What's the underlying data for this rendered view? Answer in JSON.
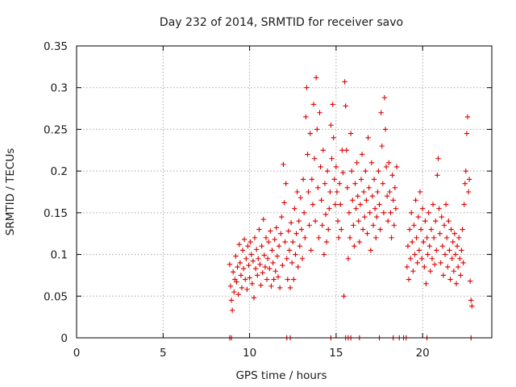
{
  "chart_data": {
    "type": "scatter",
    "title": "Day 232 of 2014, SRMTID for receiver savo",
    "xlabel": "GPS time / hours",
    "ylabel": "SRMTID / TECUs",
    "xlim": [
      0,
      24
    ],
    "ylim": [
      0,
      0.35
    ],
    "x_ticks": [
      0,
      5,
      10,
      15,
      20
    ],
    "x_tick_labels": [
      "0",
      "5",
      "10",
      "15",
      "20"
    ],
    "y_ticks": [
      0,
      0.05,
      0.1,
      0.15,
      0.2,
      0.25,
      0.3,
      0.35
    ],
    "y_tick_labels": [
      "0",
      "0.05",
      "0.1",
      "0.15",
      "0.2",
      "0.25",
      "0.3",
      "0.35"
    ],
    "grid": true,
    "marker": "+",
    "series_color": "#dd0000",
    "series": [
      {
        "name": "SRMTID",
        "points": [
          [
            8.85,
            0.088
          ],
          [
            8.9,
            0.062
          ],
          [
            8.95,
            0.045
          ],
          [
            9.0,
            0.033
          ],
          [
            9.05,
            0.079
          ],
          [
            9.1,
            0.055
          ],
          [
            9.15,
            0.07
          ],
          [
            9.2,
            0.098
          ],
          [
            9.25,
            0.067
          ],
          [
            9.3,
            0.085
          ],
          [
            9.35,
            0.052
          ],
          [
            9.4,
            0.112
          ],
          [
            9.45,
            0.09
          ],
          [
            9.5,
            0.075
          ],
          [
            9.55,
            0.06
          ],
          [
            9.6,
            0.105
          ],
          [
            9.65,
            0.083
          ],
          [
            9.7,
            0.118
          ],
          [
            9.75,
            0.07
          ],
          [
            9.8,
            0.095
          ],
          [
            9.85,
            0.058
          ],
          [
            9.9,
            0.11
          ],
          [
            9.95,
            0.087
          ],
          [
            10.0,
            0.072
          ],
          [
            10.05,
            0.115
          ],
          [
            10.1,
            0.1
          ],
          [
            10.15,
            0.065
          ],
          [
            10.2,
            0.092
          ],
          [
            10.25,
            0.048
          ],
          [
            10.3,
            0.12
          ],
          [
            10.35,
            0.083
          ],
          [
            10.4,
            0.106
          ],
          [
            10.45,
            0.075
          ],
          [
            10.5,
            0.095
          ],
          [
            10.55,
            0.13
          ],
          [
            10.6,
            0.088
          ],
          [
            10.65,
            0.063
          ],
          [
            10.7,
            0.11
          ],
          [
            10.75,
            0.078
          ],
          [
            10.8,
            0.142
          ],
          [
            10.85,
            0.099
          ],
          [
            10.9,
            0.085
          ],
          [
            10.95,
            0.12
          ],
          [
            11.0,
            0.07
          ],
          [
            11.05,
            0.095
          ],
          [
            11.1,
            0.115
          ],
          [
            11.15,
            0.083
          ],
          [
            11.2,
            0.128
          ],
          [
            11.25,
            0.062
          ],
          [
            11.3,
            0.105
          ],
          [
            11.35,
            0.09
          ],
          [
            11.4,
            0.07
          ],
          [
            11.45,
            0.118
          ],
          [
            11.5,
            0.08
          ],
          [
            11.55,
            0.132
          ],
          [
            11.6,
            0.098
          ],
          [
            11.65,
            0.073
          ],
          [
            11.7,
            0.11
          ],
          [
            11.75,
            0.06
          ],
          [
            11.8,
            0.125
          ],
          [
            11.85,
            0.145
          ],
          [
            11.9,
            0.087
          ],
          [
            11.95,
            0.208
          ],
          [
            12.0,
            0.162
          ],
          [
            12.05,
            0.115
          ],
          [
            12.1,
            0.185
          ],
          [
            12.15,
            0.095
          ],
          [
            12.2,
            0.07
          ],
          [
            12.25,
            0.128
          ],
          [
            12.3,
            0.105
          ],
          [
            12.35,
            0.06
          ],
          [
            12.4,
            0.138
          ],
          [
            12.45,
            0.09
          ],
          [
            12.5,
            0.115
          ],
          [
            12.55,
            0.07
          ],
          [
            12.6,
            0.155
          ],
          [
            12.65,
            0.1
          ],
          [
            12.7,
            0.125
          ],
          [
            12.75,
            0.175
          ],
          [
            12.8,
            0.085
          ],
          [
            12.85,
            0.14
          ],
          [
            12.9,
            0.11
          ],
          [
            12.95,
            0.168
          ],
          [
            13.0,
            0.13
          ],
          [
            13.05,
            0.095
          ],
          [
            13.1,
            0.19
          ],
          [
            13.15,
            0.15
          ],
          [
            13.2,
            0.12
          ],
          [
            13.25,
            0.265
          ],
          [
            13.3,
            0.3
          ],
          [
            13.35,
            0.22
          ],
          [
            13.4,
            0.175
          ],
          [
            13.45,
            0.135
          ],
          [
            13.5,
            0.245
          ],
          [
            13.55,
            0.105
          ],
          [
            13.6,
            0.19
          ],
          [
            13.65,
            0.16
          ],
          [
            13.7,
            0.28
          ],
          [
            13.75,
            0.215
          ],
          [
            13.8,
            0.14
          ],
          [
            13.85,
            0.312
          ],
          [
            13.9,
            0.25
          ],
          [
            13.95,
            0.18
          ],
          [
            14.0,
            0.12
          ],
          [
            14.05,
            0.27
          ],
          [
            14.1,
            0.205
          ],
          [
            14.15,
            0.165
          ],
          [
            14.2,
            0.135
          ],
          [
            14.25,
            0.225
          ],
          [
            14.3,
            0.1
          ],
          [
            14.35,
            0.185
          ],
          [
            14.4,
            0.148
          ],
          [
            14.45,
            0.115
          ],
          [
            14.5,
            0.2
          ],
          [
            14.55,
            0.13
          ],
          [
            14.6,
            0.155
          ],
          [
            14.65,
            0.175
          ],
          [
            14.7,
            0.255
          ],
          [
            14.75,
            0.215
          ],
          [
            14.8,
            0.28
          ],
          [
            14.85,
            0.24
          ],
          [
            14.9,
            0.19
          ],
          [
            14.95,
            0.16
          ],
          [
            15.0,
            0.205
          ],
          [
            15.05,
            0.175
          ],
          [
            15.1,
            0.14
          ],
          [
            15.15,
            0.12
          ],
          [
            15.2,
            0.185
          ],
          [
            15.25,
            0.16
          ],
          [
            15.3,
            0.13
          ],
          [
            15.35,
            0.225
          ],
          [
            15.4,
            0.198
          ],
          [
            15.45,
            0.05
          ],
          [
            15.5,
            0.307
          ],
          [
            15.55,
            0.278
          ],
          [
            15.6,
            0.225
          ],
          [
            15.65,
            0.18
          ],
          [
            15.7,
            0.095
          ],
          [
            15.75,
            0.15
          ],
          [
            15.8,
            0.12
          ],
          [
            15.85,
            0.245
          ],
          [
            15.9,
            0.2
          ],
          [
            15.95,
            0.165
          ],
          [
            16.0,
            0.135
          ],
          [
            16.05,
            0.11
          ],
          [
            16.1,
            0.185
          ],
          [
            16.15,
            0.155
          ],
          [
            16.2,
            0.21
          ],
          [
            16.25,
            0.17
          ],
          [
            16.3,
            0.14
          ],
          [
            16.35,
            0.115
          ],
          [
            16.4,
            0.16
          ],
          [
            16.45,
            0.19
          ],
          [
            16.5,
            0.22
          ],
          [
            16.55,
            0.13
          ],
          [
            16.6,
            0.175
          ],
          [
            16.65,
            0.145
          ],
          [
            16.7,
            0.2
          ],
          [
            16.75,
            0.165
          ],
          [
            16.8,
            0.125
          ],
          [
            16.85,
            0.24
          ],
          [
            16.9,
            0.18
          ],
          [
            16.95,
            0.15
          ],
          [
            17.0,
            0.105
          ],
          [
            17.05,
            0.21
          ],
          [
            17.1,
            0.17
          ],
          [
            17.15,
            0.135
          ],
          [
            17.2,
            0.19
          ],
          [
            17.25,
            0.155
          ],
          [
            17.3,
            0.12
          ],
          [
            17.35,
            0.145
          ],
          [
            17.4,
            0.175
          ],
          [
            17.45,
            0.2
          ],
          [
            17.5,
            0.16
          ],
          [
            17.55,
            0.13
          ],
          [
            17.6,
            0.27
          ],
          [
            17.65,
            0.23
          ],
          [
            17.7,
            0.185
          ],
          [
            17.75,
            0.15
          ],
          [
            17.8,
            0.288
          ],
          [
            17.85,
            0.25
          ],
          [
            17.9,
            0.205
          ],
          [
            17.95,
            0.17
          ],
          [
            18.0,
            0.14
          ],
          [
            18.05,
            0.21
          ],
          [
            18.1,
            0.175
          ],
          [
            18.15,
            0.15
          ],
          [
            18.2,
            0.12
          ],
          [
            18.25,
            0.195
          ],
          [
            18.3,
            0.165
          ],
          [
            18.35,
            0.135
          ],
          [
            18.4,
            0.18
          ],
          [
            18.45,
            0.155
          ],
          [
            18.5,
            0.205
          ],
          [
            19.1,
            0.085
          ],
          [
            19.15,
            0.11
          ],
          [
            19.2,
            0.07
          ],
          [
            19.25,
            0.13
          ],
          [
            19.3,
            0.095
          ],
          [
            19.35,
            0.15
          ],
          [
            19.4,
            0.115
          ],
          [
            19.45,
            0.08
          ],
          [
            19.5,
            0.135
          ],
          [
            19.55,
            0.1
          ],
          [
            19.6,
            0.165
          ],
          [
            19.65,
            0.12
          ],
          [
            19.7,
            0.09
          ],
          [
            19.75,
            0.145
          ],
          [
            19.8,
            0.105
          ],
          [
            19.85,
            0.175
          ],
          [
            19.9,
            0.13
          ],
          [
            19.95,
            0.095
          ],
          [
            20.0,
            0.155
          ],
          [
            20.05,
            0.115
          ],
          [
            20.1,
            0.085
          ],
          [
            20.15,
            0.14
          ],
          [
            20.2,
            0.065
          ],
          [
            20.25,
            0.12
          ],
          [
            20.3,
            0.1
          ],
          [
            20.35,
            0.15
          ],
          [
            20.4,
            0.11
          ],
          [
            20.45,
            0.08
          ],
          [
            20.5,
            0.13
          ],
          [
            20.55,
            0.095
          ],
          [
            20.6,
            0.16
          ],
          [
            20.65,
            0.12
          ],
          [
            20.7,
            0.088
          ],
          [
            20.75,
            0.14
          ],
          [
            20.8,
            0.105
          ],
          [
            20.85,
            0.195
          ],
          [
            20.9,
            0.215
          ],
          [
            20.95,
            0.155
          ],
          [
            21.0,
            0.125
          ],
          [
            21.05,
            0.09
          ],
          [
            21.1,
            0.145
          ],
          [
            21.15,
            0.11
          ],
          [
            21.2,
            0.075
          ],
          [
            21.25,
            0.135
          ],
          [
            21.3,
            0.1
          ],
          [
            21.35,
            0.16
          ],
          [
            21.4,
            0.12
          ],
          [
            21.45,
            0.085
          ],
          [
            21.5,
            0.14
          ],
          [
            21.55,
            0.105
          ],
          [
            21.6,
            0.07
          ],
          [
            21.65,
            0.13
          ],
          [
            21.7,
            0.095
          ],
          [
            21.75,
            0.115
          ],
          [
            21.8,
            0.08
          ],
          [
            21.85,
            0.125
          ],
          [
            21.9,
            0.1
          ],
          [
            21.95,
            0.065
          ],
          [
            22.0,
            0.11
          ],
          [
            22.05,
            0.085
          ],
          [
            22.1,
            0.12
          ],
          [
            22.15,
            0.095
          ],
          [
            22.2,
            0.075
          ],
          [
            22.25,
            0.105
          ],
          [
            22.3,
            0.13
          ],
          [
            22.35,
            0.09
          ],
          [
            22.4,
            0.16
          ],
          [
            22.45,
            0.185
          ],
          [
            22.5,
            0.2
          ],
          [
            22.55,
            0.245
          ],
          [
            22.6,
            0.265
          ],
          [
            22.65,
            0.175
          ],
          [
            22.7,
            0.19
          ],
          [
            22.75,
            0.068
          ],
          [
            22.8,
            0.045
          ],
          [
            22.85,
            0.038
          ]
        ]
      }
    ],
    "zero_points": [
      [
        8.85,
        0
      ],
      [
        8.95,
        0
      ],
      [
        12.15,
        0
      ],
      [
        12.35,
        0
      ],
      [
        14.7,
        0
      ],
      [
        15.55,
        0
      ],
      [
        15.7,
        0
      ],
      [
        15.85,
        0
      ],
      [
        16.35,
        0
      ],
      [
        17.5,
        0
      ],
      [
        18.3,
        0
      ],
      [
        18.65,
        0
      ],
      [
        18.9,
        0
      ],
      [
        19.05,
        0
      ],
      [
        20.25,
        0
      ],
      [
        22.8,
        0
      ]
    ]
  }
}
